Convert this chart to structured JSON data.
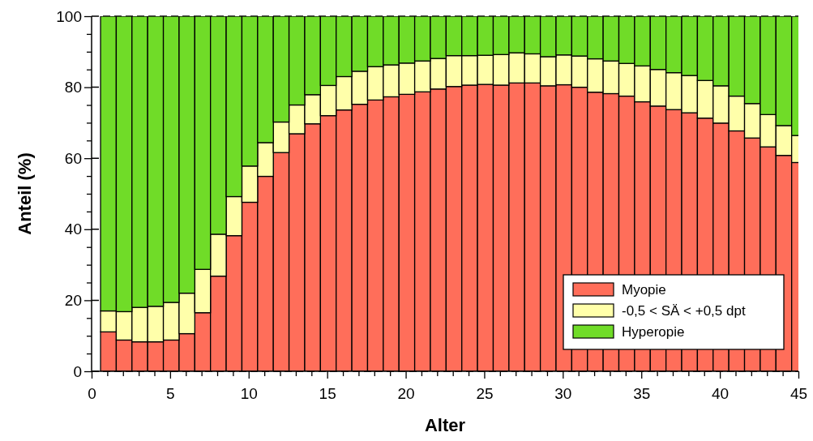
{
  "chart_data": {
    "type": "bar",
    "stacked": true,
    "xlabel": "Alter",
    "ylabel": "Anteil (%)",
    "x": [
      1,
      2,
      3,
      4,
      5,
      6,
      7,
      8,
      9,
      10,
      11,
      12,
      13,
      14,
      15,
      16,
      17,
      18,
      19,
      20,
      21,
      22,
      23,
      24,
      25,
      26,
      27,
      28,
      29,
      30,
      31,
      32,
      33,
      34,
      35,
      36,
      37,
      38,
      39,
      40,
      41,
      42,
      43,
      44,
      45
    ],
    "series": [
      {
        "name": "Myopie",
        "color": "#ff6e5a",
        "values": [
          11.1,
          8.8,
          8.3,
          8.3,
          8.8,
          10.6,
          16.5,
          26.8,
          38.2,
          47.6,
          54.9,
          61.6,
          66.9,
          69.7,
          72.0,
          73.6,
          75.2,
          76.4,
          77.3,
          78.0,
          78.7,
          79.5,
          80.2,
          80.6,
          80.8,
          80.6,
          81.2,
          81.2,
          80.4,
          80.7,
          80.0,
          78.6,
          78.2,
          77.5,
          75.9,
          74.7,
          73.7,
          72.8,
          71.3,
          69.9,
          67.7,
          65.7,
          63.2,
          60.8,
          58.8
        ]
      },
      {
        "name": "-0,5 < SÄ < +0,5 dpt",
        "color": "#ffffaa",
        "values": [
          5.9,
          8.0,
          9.7,
          10.0,
          10.6,
          11.4,
          12.2,
          11.8,
          11.0,
          10.2,
          9.5,
          8.6,
          8.1,
          8.2,
          8.5,
          9.4,
          9.3,
          9.4,
          9.0,
          8.8,
          8.7,
          8.6,
          8.7,
          8.3,
          8.2,
          8.6,
          8.5,
          8.2,
          8.2,
          8.4,
          8.8,
          9.4,
          9.2,
          9.2,
          10.1,
          10.3,
          10.4,
          10.5,
          10.6,
          10.5,
          9.8,
          9.7,
          9.1,
          8.4,
          7.6
        ]
      },
      {
        "name": "Hyperopie",
        "color": "#70dc28",
        "values": [
          83.0,
          83.2,
          82.0,
          81.7,
          80.6,
          78.0,
          71.3,
          61.4,
          50.8,
          42.2,
          35.6,
          29.8,
          25.0,
          22.1,
          19.5,
          17.0,
          15.5,
          14.2,
          13.7,
          13.2,
          12.6,
          11.9,
          11.1,
          11.1,
          11.0,
          10.8,
          10.3,
          10.6,
          11.4,
          10.9,
          11.2,
          12.0,
          12.6,
          13.3,
          14.0,
          15.0,
          15.9,
          16.7,
          18.1,
          19.6,
          22.5,
          24.6,
          27.7,
          30.8,
          33.6
        ]
      }
    ],
    "xlim": [
      0,
      45
    ],
    "xticks": [
      0,
      {
        "value": 1,
        "label": null
      },
      {
        "value": 2,
        "label": null
      },
      {
        "value": 3,
        "label": null
      },
      {
        "value": 4,
        "label": null
      },
      5,
      {
        "value": 6,
        "label": null
      },
      {
        "value": 7,
        "label": null
      },
      {
        "value": 8,
        "label": null
      },
      {
        "value": 9,
        "label": null
      },
      10,
      {
        "value": 11,
        "label": null
      },
      {
        "value": 12,
        "label": null
      },
      {
        "value": 13,
        "label": null
      },
      {
        "value": 14,
        "label": null
      },
      15,
      {
        "value": 16,
        "label": null
      },
      {
        "value": 17,
        "label": null
      },
      {
        "value": 18,
        "label": null
      },
      {
        "value": 19,
        "label": null
      },
      20,
      {
        "value": 21,
        "label": null
      },
      {
        "value": 22,
        "label": null
      },
      {
        "value": 23,
        "label": null
      },
      {
        "value": 24,
        "label": null
      },
      25,
      {
        "value": 26,
        "label": null
      },
      {
        "value": 27,
        "label": null
      },
      {
        "value": 28,
        "label": null
      },
      {
        "value": 29,
        "label": null
      },
      30,
      {
        "value": 31,
        "label": null
      },
      {
        "value": 32,
        "label": null
      },
      {
        "value": 33,
        "label": null
      },
      {
        "value": 34,
        "label": null
      },
      35,
      {
        "value": 36,
        "label": null
      },
      {
        "value": 37,
        "label": null
      },
      {
        "value": 38,
        "label": null
      },
      {
        "value": 39,
        "label": null
      },
      40,
      {
        "value": 41,
        "label": null
      },
      {
        "value": 42,
        "label": null
      },
      {
        "value": 43,
        "label": null
      },
      {
        "value": 44,
        "label": null
      },
      45
    ],
    "ylim": [
      0,
      100
    ],
    "yticks": [
      0,
      {
        "value": 5,
        "label": null
      },
      {
        "value": 10,
        "label": null
      },
      {
        "value": 15,
        "label": null
      },
      20,
      {
        "value": 25,
        "label": null
      },
      {
        "value": 30,
        "label": null
      },
      {
        "value": 35,
        "label": null
      },
      40,
      {
        "value": 45,
        "label": null
      },
      {
        "value": 50,
        "label": null
      },
      {
        "value": 55,
        "label": null
      },
      60,
      {
        "value": 65,
        "label": null
      },
      {
        "value": 70,
        "label": null
      },
      {
        "value": 75,
        "label": null
      },
      80,
      {
        "value": 85,
        "label": null
      },
      {
        "value": 90,
        "label": null
      },
      {
        "value": 95,
        "label": null
      },
      100
    ],
    "grid": "y",
    "line_style": "dashed",
    "legend": "bottom right"
  }
}
